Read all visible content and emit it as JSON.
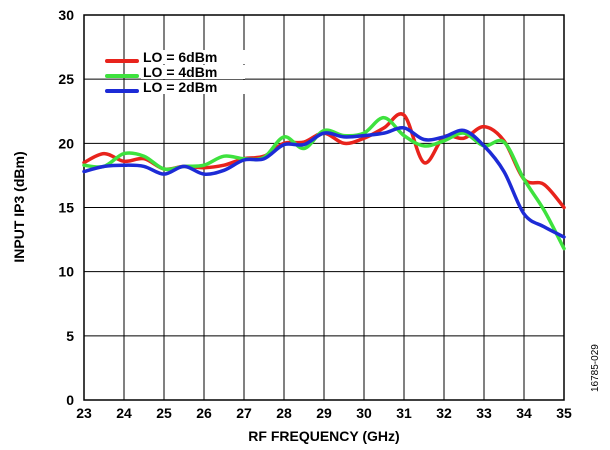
{
  "chart_data": {
    "type": "line",
    "xlabel": "RF FREQUENCY (GHz)",
    "ylabel": "INPUT IP3 (dBm)",
    "xlim": [
      23,
      35
    ],
    "ylim": [
      0,
      30
    ],
    "xticks": [
      23,
      24,
      25,
      26,
      27,
      28,
      29,
      30,
      31,
      32,
      33,
      34,
      35
    ],
    "yticks": [
      0,
      5,
      10,
      15,
      20,
      25,
      30
    ],
    "grid": true,
    "legend_position": "top-left",
    "series": [
      {
        "name": "LO = 6dBm",
        "color": "#e8231c",
        "x": [
          23,
          23.5,
          24,
          24.5,
          25,
          25.5,
          26,
          26.5,
          27,
          27.5,
          28,
          28.5,
          29,
          29.5,
          30,
          30.5,
          31,
          31.5,
          32,
          32.5,
          33,
          33.5,
          34,
          34.5,
          35
        ],
        "y": [
          18.5,
          19.2,
          18.6,
          18.8,
          18.0,
          18.2,
          18.1,
          18.3,
          18.8,
          19.0,
          20.0,
          20.1,
          20.8,
          20.0,
          20.4,
          21.2,
          22.2,
          18.5,
          20.5,
          20.4,
          21.3,
          20.2,
          17.2,
          16.8,
          15.0
        ]
      },
      {
        "name": "LO = 4dBm",
        "color": "#3ee23e",
        "x": [
          23,
          23.5,
          24,
          24.5,
          25,
          25.5,
          26,
          26.5,
          27,
          27.5,
          28,
          28.5,
          29,
          29.5,
          30,
          30.5,
          31,
          31.5,
          32,
          32.5,
          33,
          33.5,
          34,
          34.5,
          35
        ],
        "y": [
          18.3,
          18.2,
          19.2,
          19.0,
          18.0,
          18.2,
          18.3,
          19.0,
          18.8,
          18.9,
          20.5,
          19.6,
          21.0,
          20.6,
          20.8,
          22.0,
          20.6,
          19.8,
          20.2,
          20.8,
          19.8,
          20.1,
          17.2,
          14.8,
          11.8
        ]
      },
      {
        "name": "LO = 2dBm",
        "color": "#1d2bd6",
        "x": [
          23,
          23.5,
          24,
          24.5,
          25,
          25.5,
          26,
          26.5,
          27,
          27.5,
          28,
          28.5,
          29,
          29.5,
          30,
          30.5,
          31,
          31.5,
          32,
          32.5,
          33,
          33.5,
          34,
          34.5,
          35
        ],
        "y": [
          17.8,
          18.2,
          18.3,
          18.2,
          17.6,
          18.2,
          17.6,
          17.9,
          18.7,
          18.8,
          19.9,
          19.9,
          20.8,
          20.5,
          20.6,
          20.8,
          21.2,
          20.3,
          20.5,
          21.0,
          19.8,
          17.8,
          14.5,
          13.5,
          12.7
        ]
      }
    ]
  },
  "figure_id": "16785-029"
}
